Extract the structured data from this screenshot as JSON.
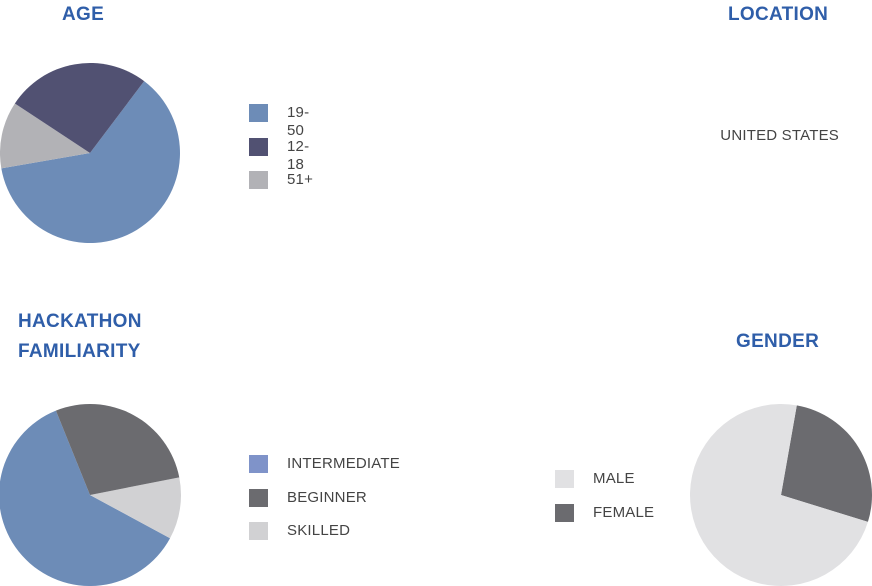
{
  "age": {
    "title": "AGE",
    "chart_data": {
      "type": "pie",
      "title": "AGE",
      "labels": [
        "19-50",
        "12-18",
        "51+"
      ],
      "values": [
        62,
        26,
        12
      ],
      "colors": [
        "#6d8cb7",
        "#515172",
        "#b2b2b6"
      ]
    }
  },
  "location": {
    "title": "LOCATION",
    "value": "UNITED STATES"
  },
  "familiarity": {
    "title_line1": "HACKATHON",
    "title_line2": "FAMILIARITY",
    "chart_data": {
      "type": "pie",
      "title": "HACKATHON FAMILIARITY",
      "labels": [
        "INTERMEDIATE",
        "BEGINNER",
        "SKILLED"
      ],
      "values": [
        61,
        28,
        11
      ],
      "colors": [
        "#6d8cb7",
        "#6b6b6f",
        "#d1d1d3"
      ],
      "legend_colors": [
        "#7f93c9",
        "#6b6b6f",
        "#d1d1d3"
      ]
    }
  },
  "gender": {
    "title": "GENDER",
    "chart_data": {
      "type": "pie",
      "title": "GENDER",
      "labels": [
        "MALE",
        "FEMALE"
      ],
      "values": [
        73,
        27
      ],
      "colors": [
        "#e1e1e3",
        "#6b6b6f"
      ]
    }
  }
}
